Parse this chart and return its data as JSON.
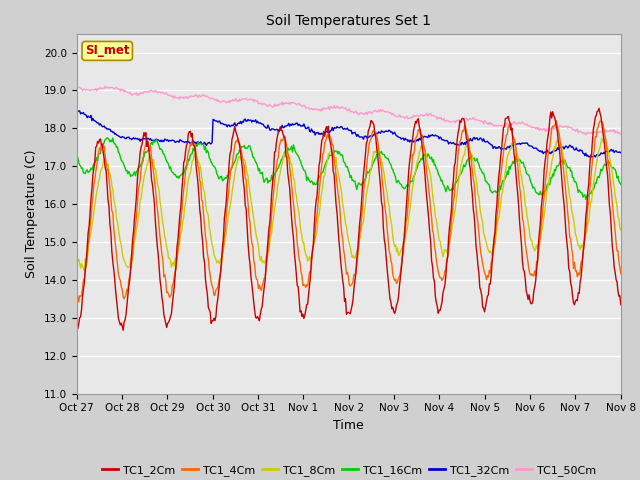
{
  "title": "Soil Temperatures Set 1",
  "xlabel": "Time",
  "ylabel": "Soil Temperature (C)",
  "ylim": [
    11.0,
    20.5
  ],
  "yticks": [
    11.0,
    12.0,
    13.0,
    14.0,
    15.0,
    16.0,
    17.0,
    18.0,
    19.0,
    20.0
  ],
  "series_colors": {
    "TC1_2Cm": "#cc0000",
    "TC1_4Cm": "#ff6600",
    "TC1_8Cm": "#cccc00",
    "TC1_16Cm": "#00cc00",
    "TC1_32Cm": "#0000cc",
    "TC1_50Cm": "#ff99cc"
  },
  "annotation_text": "SI_met",
  "annotation_bg": "#ffff99",
  "annotation_fg": "#cc0000",
  "x_tick_labels": [
    "Oct 27",
    "Oct 28",
    "Oct 29",
    "Oct 30",
    "Oct 31",
    "Nov 1",
    "Nov 2",
    "Nov 3",
    "Nov 4",
    "Nov 5",
    "Nov 6",
    "Nov 7",
    "Nov 8"
  ],
  "n_days": 12,
  "pts_per_day": 48
}
